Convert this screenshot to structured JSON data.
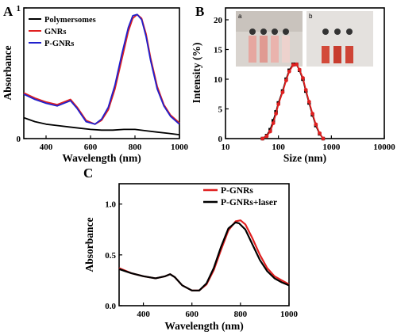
{
  "panels": {
    "A": {
      "label": "A"
    },
    "B": {
      "label": "B"
    },
    "C": {
      "label": "C"
    }
  },
  "inset": {
    "a": "a",
    "b": "b"
  },
  "chart_data": [
    {
      "id": "A",
      "type": "line",
      "xlabel": "Wavelength (nm)",
      "ylabel": "Absorbance",
      "xlim": [
        300,
        1000
      ],
      "ylim": [
        0,
        1.0
      ],
      "xticks": [
        400,
        600,
        800,
        1000
      ],
      "yticks": [
        0,
        1
      ],
      "legend_position": "top-left",
      "series": [
        {
          "name": "Polymersomes",
          "color": "#000000",
          "x": [
            300,
            350,
            400,
            450,
            500,
            550,
            600,
            650,
            700,
            750,
            800,
            850,
            900,
            950,
            1000
          ],
          "y": [
            0.16,
            0.13,
            0.11,
            0.1,
            0.09,
            0.08,
            0.07,
            0.065,
            0.065,
            0.07,
            0.07,
            0.06,
            0.05,
            0.04,
            0.03
          ]
        },
        {
          "name": "GNRs",
          "color": "#e02020",
          "x": [
            300,
            350,
            400,
            450,
            480,
            510,
            540,
            580,
            620,
            650,
            680,
            710,
            740,
            770,
            790,
            810,
            830,
            850,
            870,
            900,
            930,
            960,
            1000
          ],
          "y": [
            0.35,
            0.31,
            0.28,
            0.26,
            0.28,
            0.3,
            0.24,
            0.14,
            0.11,
            0.14,
            0.22,
            0.38,
            0.6,
            0.82,
            0.92,
            0.95,
            0.92,
            0.8,
            0.62,
            0.4,
            0.26,
            0.18,
            0.12
          ]
        },
        {
          "name": "P-GNRs",
          "color": "#2020cc",
          "x": [
            300,
            350,
            400,
            450,
            480,
            510,
            540,
            580,
            620,
            650,
            680,
            710,
            740,
            770,
            790,
            810,
            830,
            850,
            870,
            900,
            930,
            960,
            1000
          ],
          "y": [
            0.34,
            0.3,
            0.27,
            0.25,
            0.27,
            0.29,
            0.23,
            0.13,
            0.11,
            0.15,
            0.24,
            0.41,
            0.64,
            0.85,
            0.94,
            0.95,
            0.91,
            0.78,
            0.6,
            0.38,
            0.25,
            0.17,
            0.11
          ]
        }
      ]
    },
    {
      "id": "B",
      "type": "line",
      "xscale": "log",
      "xlabel": "Size (nm)",
      "ylabel": "Intensity (%)",
      "xlim": [
        10,
        10000
      ],
      "ylim": [
        0,
        22
      ],
      "xticks": [
        10,
        100,
        1000,
        10000
      ],
      "yticks": [
        0,
        5,
        10,
        15,
        20
      ],
      "series": [
        {
          "name": "",
          "color": "#000000",
          "x": [
            50,
            60,
            70,
            80,
            90,
            100,
            120,
            140,
            160,
            190,
            220,
            250,
            290,
            330,
            380,
            440,
            510,
            600,
            700
          ],
          "y": [
            0,
            0.5,
            1.5,
            3,
            4.5,
            6,
            8,
            10,
            11.5,
            12.5,
            12.5,
            11.5,
            10,
            8,
            6,
            4,
            2.2,
            0.8,
            0
          ]
        },
        {
          "name": "",
          "color": "#e02020",
          "x": [
            50,
            60,
            70,
            80,
            90,
            100,
            120,
            140,
            160,
            190,
            220,
            250,
            290,
            330,
            380,
            440,
            510,
            600,
            700
          ],
          "y": [
            0,
            0.4,
            1.2,
            2.6,
            4.2,
            5.8,
            7.8,
            9.8,
            11.3,
            12.4,
            12.5,
            11.6,
            10.2,
            8.2,
            6.2,
            4.2,
            2.4,
            0.9,
            0
          ]
        }
      ]
    },
    {
      "id": "C",
      "type": "line",
      "xlabel": "Wavelength (nm)",
      "ylabel": "Absorbance",
      "xlim": [
        300,
        1000
      ],
      "ylim": [
        0,
        1.2
      ],
      "xticks": [
        400,
        600,
        800,
        1000
      ],
      "yticks": [
        0.0,
        0.5,
        1.0
      ],
      "ytick_labels": [
        "0.0",
        "0.5",
        "1.0"
      ],
      "legend_position": "top-right",
      "series": [
        {
          "name": "P-GNRs",
          "color": "#e02020",
          "x": [
            300,
            350,
            400,
            450,
            490,
            510,
            530,
            560,
            600,
            630,
            660,
            690,
            720,
            750,
            780,
            800,
            820,
            850,
            880,
            910,
            940,
            970,
            1000
          ],
          "y": [
            0.37,
            0.32,
            0.29,
            0.27,
            0.29,
            0.31,
            0.28,
            0.2,
            0.15,
            0.15,
            0.21,
            0.35,
            0.55,
            0.74,
            0.83,
            0.84,
            0.8,
            0.66,
            0.5,
            0.37,
            0.29,
            0.25,
            0.21
          ]
        },
        {
          "name": "P-GNRs+laser",
          "color": "#000000",
          "x": [
            300,
            350,
            400,
            450,
            490,
            510,
            530,
            560,
            600,
            630,
            660,
            690,
            720,
            750,
            780,
            795,
            820,
            850,
            880,
            910,
            940,
            970,
            1000
          ],
          "y": [
            0.36,
            0.32,
            0.29,
            0.27,
            0.29,
            0.31,
            0.28,
            0.2,
            0.15,
            0.15,
            0.22,
            0.37,
            0.58,
            0.76,
            0.82,
            0.81,
            0.75,
            0.6,
            0.45,
            0.34,
            0.27,
            0.23,
            0.2
          ]
        }
      ]
    }
  ]
}
